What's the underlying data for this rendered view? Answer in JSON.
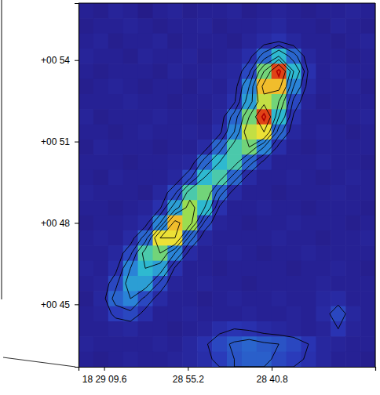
{
  "chart_data": {
    "type": "heatmap",
    "xlim": [
      74.0,
      23.0
    ],
    "ylim": [
      42.7,
      56.1
    ],
    "xticks": [
      {
        "value": 69.6,
        "label": "18 29 09.6"
      },
      {
        "value": 55.2,
        "label": "28 55.2"
      },
      {
        "value": 40.8,
        "label": "28 40.8"
      }
    ],
    "yticks": [
      {
        "value": 45,
        "label": "+00 45"
      },
      {
        "value": 48,
        "label": "+00 48"
      },
      {
        "value": 51,
        "label": "+00 51"
      },
      {
        "value": 54,
        "label": "+00 54"
      }
    ],
    "zlim": [
      0.5,
      9
    ],
    "contour_levels": [
      1.6,
      2.2,
      3,
      4,
      5,
      6.5,
      8
    ],
    "cells": [
      [
        1.0,
        0.9,
        1.1,
        1.0,
        0.8,
        1.0,
        1.1,
        0.9,
        1.0,
        1.0,
        1.1,
        0.9,
        1.0,
        1.1,
        1.0,
        0.9,
        1.0,
        1.0,
        1.1,
        1.0
      ],
      [
        0.9,
        1.0,
        1.0,
        1.1,
        1.0,
        0.9,
        1.0,
        1.0,
        1.1,
        0.9,
        1.0,
        1.0,
        1.1,
        1.2,
        1.0,
        1.0,
        0.9,
        1.1,
        1.0,
        0.9
      ],
      [
        1.0,
        1.1,
        0.9,
        1.0,
        1.0,
        1.1,
        0.9,
        1.0,
        1.0,
        1.0,
        0.9,
        1.1,
        1.3,
        1.5,
        1.2,
        1.0,
        1.0,
        0.9,
        1.0,
        1.1
      ],
      [
        1.1,
        1.0,
        1.0,
        0.9,
        1.1,
        1.0,
        1.0,
        1.1,
        0.9,
        1.0,
        1.1,
        1.4,
        2.5,
        4.0,
        2.5,
        1.2,
        1.0,
        1.0,
        0.9,
        1.0
      ],
      [
        1.0,
        0.9,
        1.0,
        1.0,
        1.0,
        0.9,
        1.1,
        1.0,
        1.0,
        1.1,
        1.2,
        2.0,
        5.0,
        8.5,
        4.0,
        1.5,
        1.0,
        1.1,
        1.0,
        1.0
      ],
      [
        0.9,
        1.0,
        1.1,
        1.0,
        0.9,
        1.0,
        1.0,
        0.9,
        1.1,
        1.0,
        1.3,
        3.0,
        7.0,
        7.0,
        3.0,
        1.3,
        1.0,
        1.0,
        1.1,
        0.9
      ],
      [
        1.0,
        1.0,
        1.0,
        1.1,
        1.0,
        1.0,
        0.9,
        1.0,
        1.0,
        1.1,
        1.5,
        3.5,
        6.0,
        5.0,
        2.0,
        1.1,
        0.9,
        1.0,
        1.0,
        1.0
      ],
      [
        1.1,
        0.9,
        1.0,
        1.0,
        1.0,
        1.1,
        1.0,
        1.0,
        0.9,
        1.2,
        2.5,
        5.0,
        8.5,
        4.0,
        1.5,
        1.0,
        1.0,
        0.9,
        1.0,
        1.1
      ],
      [
        1.0,
        1.0,
        0.9,
        1.0,
        1.1,
        1.0,
        1.0,
        1.1,
        1.0,
        1.4,
        3.0,
        6.0,
        6.5,
        2.5,
        1.2,
        1.0,
        1.1,
        1.0,
        0.9,
        1.0
      ],
      [
        0.9,
        1.1,
        1.0,
        1.0,
        1.0,
        0.9,
        1.0,
        1.0,
        1.3,
        2.5,
        4.5,
        5.0,
        3.0,
        1.4,
        1.0,
        0.9,
        1.0,
        1.0,
        1.0,
        1.0
      ],
      [
        1.0,
        1.0,
        1.0,
        0.9,
        1.0,
        1.0,
        1.1,
        1.2,
        2.5,
        4.0,
        4.5,
        2.5,
        1.4,
        1.0,
        1.0,
        1.0,
        1.1,
        1.0,
        1.0,
        0.9
      ],
      [
        1.0,
        0.9,
        1.1,
        1.0,
        1.0,
        1.0,
        1.2,
        2.0,
        4.0,
        4.5,
        2.5,
        1.3,
        1.0,
        1.0,
        1.1,
        1.0,
        0.9,
        1.0,
        1.1,
        1.0
      ],
      [
        1.1,
        1.0,
        1.0,
        1.0,
        0.9,
        1.2,
        2.0,
        4.5,
        5.0,
        2.5,
        1.3,
        1.0,
        1.0,
        0.9,
        1.0,
        1.0,
        1.0,
        1.1,
        1.0,
        1.0
      ],
      [
        1.0,
        1.0,
        0.9,
        1.0,
        1.1,
        1.5,
        3.5,
        5.5,
        4.0,
        1.5,
        1.0,
        1.0,
        1.1,
        1.0,
        1.0,
        0.9,
        1.0,
        1.0,
        1.0,
        0.9
      ],
      [
        0.9,
        1.0,
        1.0,
        1.1,
        1.3,
        3.0,
        7.0,
        5.5,
        2.0,
        1.1,
        1.0,
        0.9,
        1.0,
        1.0,
        1.1,
        1.0,
        1.0,
        1.0,
        0.9,
        1.0
      ],
      [
        1.0,
        1.1,
        1.0,
        1.3,
        2.5,
        6.5,
        6.5,
        2.5,
        1.2,
        1.0,
        1.0,
        1.0,
        1.0,
        1.1,
        1.0,
        1.0,
        0.9,
        1.0,
        1.0,
        1.1
      ],
      [
        1.0,
        1.0,
        1.2,
        2.0,
        4.5,
        5.0,
        3.0,
        1.3,
        1.0,
        1.0,
        1.1,
        1.0,
        0.9,
        1.0,
        1.0,
        1.1,
        1.0,
        1.0,
        1.0,
        1.0
      ],
      [
        1.1,
        1.0,
        1.4,
        3.0,
        4.0,
        3.5,
        1.5,
        1.0,
        1.0,
        0.9,
        1.0,
        1.0,
        1.0,
        1.0,
        0.9,
        1.0,
        1.0,
        1.1,
        1.0,
        0.9
      ],
      [
        1.0,
        1.1,
        2.0,
        3.5,
        3.5,
        2.0,
        1.1,
        1.0,
        1.1,
        1.0,
        1.0,
        0.9,
        1.0,
        1.0,
        1.0,
        1.0,
        1.1,
        1.0,
        1.0,
        1.0
      ],
      [
        0.9,
        1.2,
        2.5,
        3.0,
        2.0,
        1.3,
        1.0,
        1.0,
        0.9,
        1.0,
        1.1,
        1.0,
        1.0,
        1.1,
        1.0,
        1.0,
        1.2,
        1.3,
        1.0,
        1.0
      ],
      [
        1.0,
        1.1,
        1.8,
        2.0,
        1.4,
        1.0,
        1.0,
        1.1,
        1.0,
        1.0,
        1.0,
        1.1,
        1.0,
        1.0,
        1.1,
        1.0,
        1.3,
        2.0,
        1.2,
        1.0
      ],
      [
        1.0,
        1.0,
        1.1,
        1.2,
        1.0,
        1.0,
        0.9,
        1.0,
        1.1,
        1.4,
        1.6,
        1.5,
        1.3,
        1.2,
        1.1,
        1.0,
        1.1,
        1.6,
        1.1,
        1.0
      ],
      [
        1.1,
        1.0,
        1.0,
        1.0,
        1.0,
        1.1,
        1.0,
        1.2,
        1.5,
        2.0,
        2.3,
        2.5,
        2.3,
        2.2,
        2.0,
        1.6,
        1.2,
        1.1,
        1.0,
        1.0
      ],
      [
        1.0,
        0.9,
        1.0,
        1.1,
        1.0,
        1.0,
        1.1,
        1.2,
        1.4,
        1.8,
        2.2,
        2.4,
        2.4,
        2.0,
        1.8,
        1.5,
        1.2,
        1.0,
        1.0,
        0.9
      ]
    ]
  }
}
